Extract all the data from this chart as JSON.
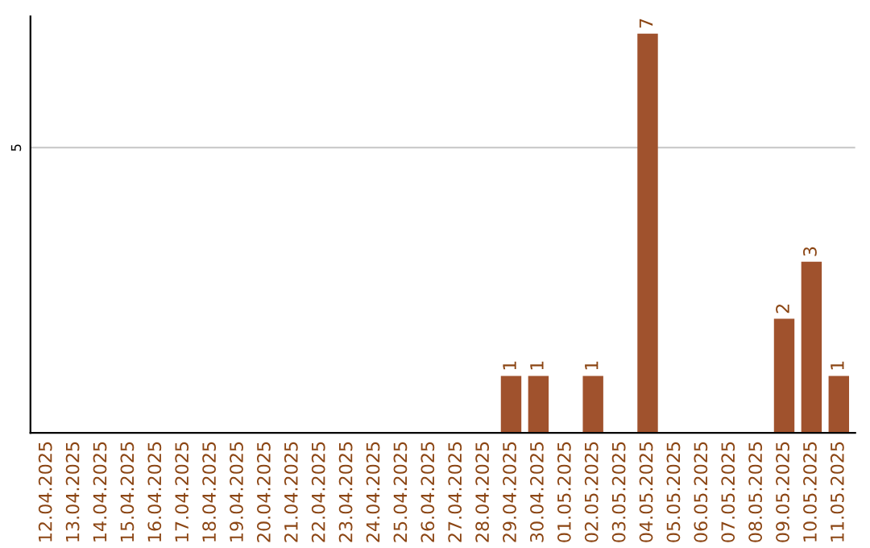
{
  "chart_data": {
    "type": "bar",
    "categories": [
      "12.04.2025",
      "13.04.2025",
      "14.04.2025",
      "15.04.2025",
      "16.04.2025",
      "17.04.2025",
      "18.04.2025",
      "19.04.2025",
      "20.04.2025",
      "21.04.2025",
      "22.04.2025",
      "23.04.2025",
      "24.04.2025",
      "25.04.2025",
      "26.04.2025",
      "27.04.2025",
      "28.04.2025",
      "29.04.2025",
      "30.04.2025",
      "01.05.2025",
      "02.05.2025",
      "03.05.2025",
      "04.05.2025",
      "05.05.2025",
      "06.05.2025",
      "07.05.2025",
      "08.05.2025",
      "09.05.2025",
      "10.05.2025",
      "11.05.2025"
    ],
    "values": [
      null,
      null,
      null,
      null,
      null,
      null,
      null,
      null,
      null,
      null,
      null,
      null,
      null,
      null,
      null,
      null,
      null,
      1,
      1,
      null,
      1,
      null,
      7,
      null,
      null,
      null,
      null,
      2,
      3,
      1
    ],
    "data_labels": true,
    "color": "#a0522d",
    "ylim": [
      0,
      7.3
    ],
    "ref_lines": [
      {
        "axis": "y",
        "value": 5,
        "label": "5",
        "color": "#cccccc"
      }
    ]
  }
}
